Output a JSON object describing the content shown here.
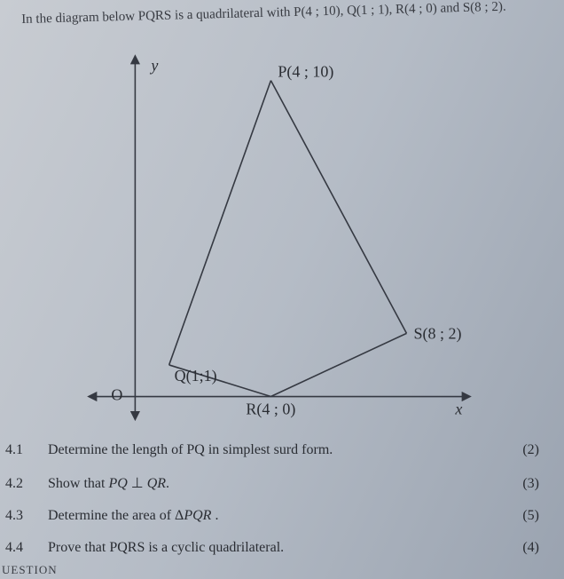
{
  "intro": "In the diagram below PQRS is a quadrilateral with P(4 ; 10), Q(1 ; 1), R(4 ; 0) and S(8 ; 2).",
  "diagram": {
    "labels": {
      "P": "P(4 ; 10)",
      "Q": "Q(1;1)",
      "R": "R(4 ; 0)",
      "S": "S(8 ; 2)",
      "y": "y",
      "x": "x",
      "O": "O"
    },
    "points": {
      "P": [
        4,
        10
      ],
      "Q": [
        1,
        1
      ],
      "R": [
        4,
        0
      ],
      "S": [
        8,
        2
      ]
    },
    "axis": {
      "x_range": [
        -1.5,
        10
      ],
      "y_range": [
        -0.8,
        11
      ]
    },
    "stroke_color": "#353942",
    "stroke_width": 1.6
  },
  "questions": [
    {
      "num": "4.1",
      "text": "Determine the length of PQ in simplest surd form.",
      "marks": "(2)"
    },
    {
      "num": "4.2",
      "text_html": "Show that <i>PQ</i> <span class='perp'>⊥</span> <i>QR</i>.",
      "marks": "(3)"
    },
    {
      "num": "4.3",
      "text_html": "Determine the area of Δ<i>PQR</i> .",
      "marks": "(5)"
    },
    {
      "num": "4.4",
      "text": "Prove that PQRS is a cyclic quadrilateral.",
      "marks": "(4)"
    }
  ],
  "footer_fragment": "UESTION"
}
